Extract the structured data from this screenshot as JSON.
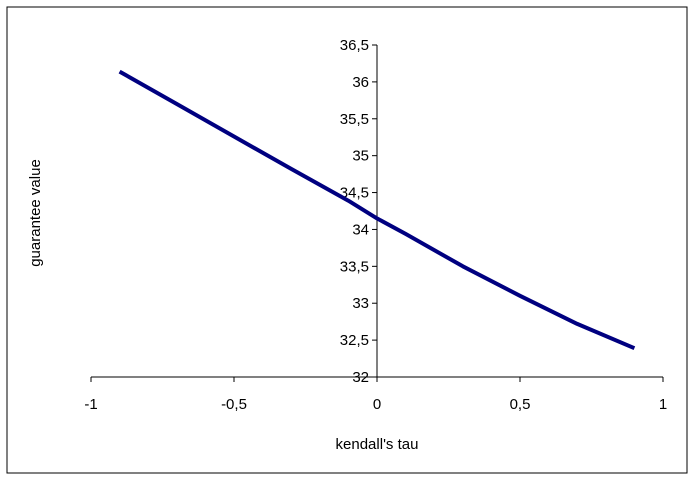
{
  "chart_data": {
    "type": "line",
    "title": "",
    "xlabel": "kendall's tau",
    "ylabel": "guarantee value",
    "xlim": [
      -1,
      1
    ],
    "ylim": [
      32,
      36.5
    ],
    "x_ticks": [
      -1,
      -0.5,
      0,
      0.5,
      1
    ],
    "x_tick_labels": [
      "-1",
      "-0,5",
      "0",
      "0,5",
      "1"
    ],
    "y_ticks": [
      32,
      32.5,
      33,
      33.5,
      34,
      34.5,
      35,
      35.5,
      36,
      36.5
    ],
    "y_tick_labels": [
      "32",
      "32,5",
      "33",
      "33,5",
      "34",
      "34,5",
      "35",
      "35,5",
      "36",
      "36,5"
    ],
    "grid": false,
    "legend": "none",
    "series": [
      {
        "color": "#000080",
        "x": [
          -0.9,
          -0.7,
          -0.5,
          -0.3,
          -0.1,
          0,
          0.1,
          0.3,
          0.5,
          0.7,
          0.9
        ],
        "values": [
          36.14,
          35.7,
          35.26,
          34.82,
          34.39,
          34.15,
          33.94,
          33.5,
          33.1,
          32.72,
          32.39
        ]
      }
    ]
  }
}
